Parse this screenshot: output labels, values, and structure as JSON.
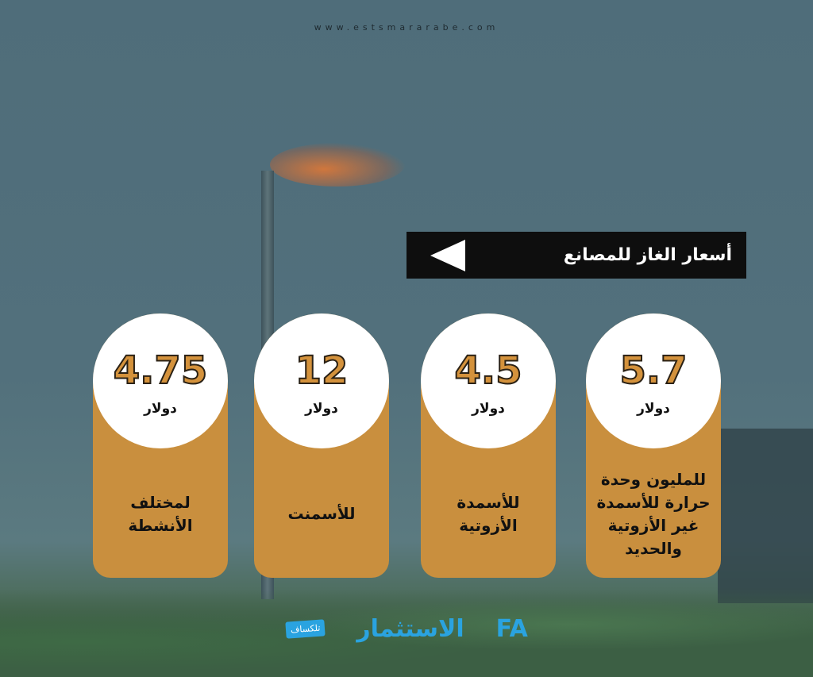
{
  "site_url": "www.estsmararabe.com",
  "title": "أسعار الغاز للمصانع",
  "cards": [
    {
      "value": "5.7",
      "unit": "دولار",
      "desc": "للمليون وحدة حرارة للأسمدة غير الأزوتية والحديد"
    },
    {
      "value": "4.5",
      "unit": "دولار",
      "desc": "للأسمدة الأزوتية"
    },
    {
      "value": "12",
      "unit": "دولار",
      "desc": "للأسمنت"
    },
    {
      "value": "4.75",
      "unit": "دولار",
      "desc": "لمختلف الأنشطة"
    }
  ],
  "logos": {
    "talksaf": "تلكساف",
    "alestsmar": "الاستثمار",
    "fa": "FA"
  },
  "colors": {
    "card": "#c98f3e",
    "banner": "#0e0e0e",
    "number": "#d4923c"
  }
}
